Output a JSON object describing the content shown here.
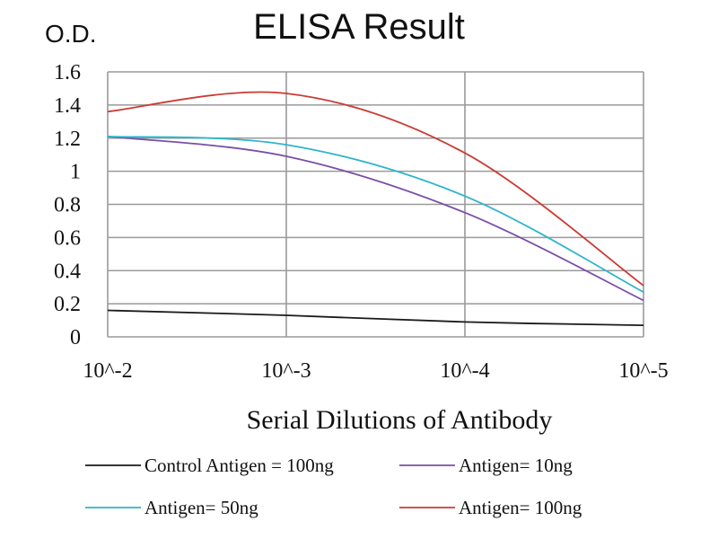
{
  "chart_data": {
    "type": "line",
    "title": "ELISA Result",
    "ylabel": "O.D.",
    "xlabel": "Serial  Dilutions  of Antibody",
    "x_ticks": [
      "10^-2",
      "10^-3",
      "10^-4",
      "10^-5"
    ],
    "x": [
      -2,
      -3,
      -4,
      -5
    ],
    "y_ticks": [
      "0",
      "0.2",
      "0.4",
      "0.6",
      "0.8",
      "1",
      "1.2",
      "1.4",
      "1.6"
    ],
    "ylim": [
      0,
      1.6
    ],
    "grid": true,
    "legend_position": "bottom",
    "series": [
      {
        "name": "Control Antigen = 100ng",
        "color": "#1a1a1a",
        "values": [
          0.16,
          0.13,
          0.09,
          0.07
        ]
      },
      {
        "name": "Antigen= 10ng",
        "color": "#7a4fa6",
        "values": [
          1.21,
          1.09,
          0.75,
          0.22
        ]
      },
      {
        "name": "Antigen= 50ng",
        "color": "#2eb5cc",
        "values": [
          1.21,
          1.16,
          0.85,
          0.27
        ]
      },
      {
        "name": "Antigen= 100ng",
        "color": "#cc3b33",
        "values": [
          1.36,
          1.47,
          1.11,
          0.31
        ]
      }
    ]
  }
}
